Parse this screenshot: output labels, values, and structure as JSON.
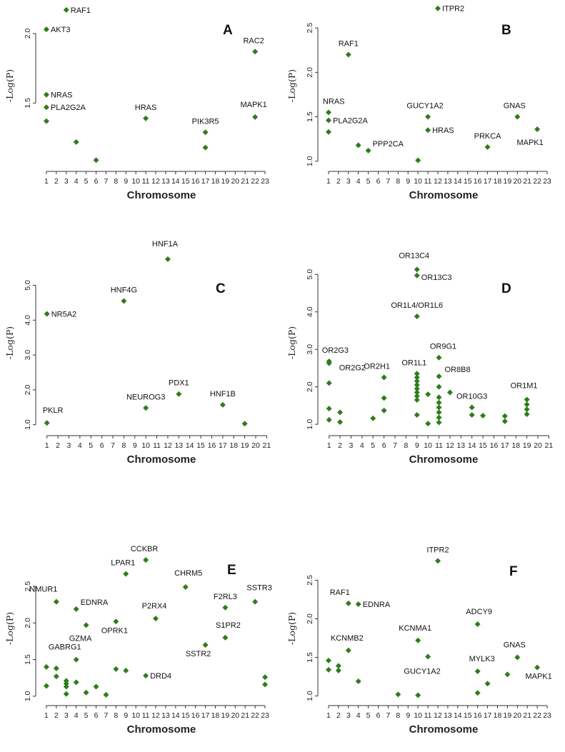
{
  "chart_data": [
    {
      "type": "scatter",
      "panel_label": "A",
      "xlabel": "Chromosome",
      "ylabel": "-Log(P)",
      "x_ticks": [
        1,
        2,
        3,
        4,
        5,
        6,
        7,
        8,
        9,
        10,
        11,
        12,
        13,
        14,
        15,
        16,
        17,
        18,
        19,
        20,
        21,
        22,
        23
      ],
      "y_ticks": [
        1.5,
        2.0
      ],
      "xlim": [
        0.5,
        23.5
      ],
      "ylim": [
        1.05,
        2.2
      ],
      "points": [
        {
          "x": 3,
          "y": 2.17,
          "label": "RAF1"
        },
        {
          "x": 1,
          "y": 2.03,
          "label": "AKT3"
        },
        {
          "x": 1,
          "y": 1.56,
          "label": "NRAS"
        },
        {
          "x": 1,
          "y": 1.47,
          "label": "PLA2G2A"
        },
        {
          "x": 1,
          "y": 1.37,
          "label": ""
        },
        {
          "x": 4,
          "y": 1.22,
          "label": ""
        },
        {
          "x": 6,
          "y": 1.09,
          "label": ""
        },
        {
          "x": 11,
          "y": 1.39,
          "label": "HRAS"
        },
        {
          "x": 17,
          "y": 1.29,
          "label": "PIK3R5"
        },
        {
          "x": 17,
          "y": 1.18,
          "label": ""
        },
        {
          "x": 22,
          "y": 1.87,
          "label": "RAC2"
        },
        {
          "x": 22,
          "y": 1.4,
          "label": "MAPK1"
        }
      ]
    },
    {
      "type": "scatter",
      "panel_label": "B",
      "xlabel": "Chromosome",
      "ylabel": "-Log(P)",
      "x_ticks": [
        1,
        2,
        3,
        4,
        5,
        6,
        7,
        8,
        9,
        10,
        11,
        12,
        13,
        14,
        15,
        16,
        17,
        18,
        19,
        20,
        21,
        22,
        23
      ],
      "y_ticks": [
        1.0,
        1.5,
        2.0,
        2.5
      ],
      "xlim": [
        0.5,
        23.5
      ],
      "ylim": [
        0.95,
        2.75
      ],
      "points": [
        {
          "x": 12,
          "y": 2.72,
          "label": "ITPR2"
        },
        {
          "x": 3,
          "y": 2.2,
          "label": "RAF1"
        },
        {
          "x": 1,
          "y": 1.55,
          "label": "NRAS"
        },
        {
          "x": 1,
          "y": 1.46,
          "label": "PLA2G2A"
        },
        {
          "x": 1,
          "y": 1.33,
          "label": ""
        },
        {
          "x": 4,
          "y": 1.18,
          "label": ""
        },
        {
          "x": 5,
          "y": 1.12,
          "label": "PPP2CA"
        },
        {
          "x": 10,
          "y": 1.01,
          "label": ""
        },
        {
          "x": 11,
          "y": 1.5,
          "label": "GUCY1A2"
        },
        {
          "x": 11,
          "y": 1.35,
          "label": "HRAS"
        },
        {
          "x": 17,
          "y": 1.16,
          "label": "PRKCA"
        },
        {
          "x": 20,
          "y": 1.5,
          "label": "GNAS"
        },
        {
          "x": 22,
          "y": 1.36,
          "label": "MAPK1"
        }
      ]
    },
    {
      "type": "scatter",
      "panel_label": "C",
      "xlabel": "Chromosome",
      "ylabel": "-Log(P)",
      "x_ticks": [
        1,
        2,
        3,
        4,
        5,
        6,
        7,
        8,
        9,
        10,
        11,
        12,
        13,
        14,
        15,
        16,
        17,
        18,
        19,
        20,
        21
      ],
      "y_ticks": [
        1.0,
        2.0,
        3.0,
        4.0,
        5.0
      ],
      "xlim": [
        0.5,
        21.3
      ],
      "ylim": [
        0.85,
        5.85
      ],
      "points": [
        {
          "x": 12,
          "y": 5.75,
          "label": "HNF1A"
        },
        {
          "x": 8,
          "y": 4.55,
          "label": "HNF4G"
        },
        {
          "x": 1,
          "y": 4.18,
          "label": "NR5A2"
        },
        {
          "x": 1,
          "y": 1.05,
          "label": "PKLR"
        },
        {
          "x": 10,
          "y": 1.48,
          "label": "NEUROG3"
        },
        {
          "x": 13,
          "y": 1.88,
          "label": "PDX1"
        },
        {
          "x": 17,
          "y": 1.57,
          "label": "HNF1B"
        },
        {
          "x": 19,
          "y": 1.03,
          "label": ""
        }
      ]
    },
    {
      "type": "scatter",
      "panel_label": "D",
      "xlabel": "Chromosome",
      "ylabel": "-Log(P)",
      "x_ticks": [
        1,
        2,
        3,
        4,
        5,
        6,
        7,
        8,
        9,
        10,
        11,
        12,
        13,
        14,
        15,
        16,
        17,
        18,
        19,
        20,
        21
      ],
      "y_ticks": [
        1.0,
        2.0,
        3.0,
        4.0,
        5.0
      ],
      "xlim": [
        0.5,
        21.3
      ],
      "ylim": [
        0.85,
        5.5
      ],
      "points": [
        {
          "x": 9,
          "y": 5.13,
          "label": "OR13C4"
        },
        {
          "x": 9,
          "y": 4.97,
          "label": "OR13C3"
        },
        {
          "x": 9,
          "y": 3.88,
          "label": "OR1L4/OR1L6"
        },
        {
          "x": 1,
          "y": 2.68,
          "label": "OR2G3"
        },
        {
          "x": 1,
          "y": 2.63,
          "label": "OR2G2"
        },
        {
          "x": 1,
          "y": 2.1,
          "label": ""
        },
        {
          "x": 1,
          "y": 1.42,
          "label": ""
        },
        {
          "x": 1,
          "y": 1.12,
          "label": ""
        },
        {
          "x": 2,
          "y": 1.32,
          "label": ""
        },
        {
          "x": 2,
          "y": 1.06,
          "label": ""
        },
        {
          "x": 5,
          "y": 1.16,
          "label": ""
        },
        {
          "x": 6,
          "y": 2.25,
          "label": "OR2H1"
        },
        {
          "x": 6,
          "y": 1.7,
          "label": ""
        },
        {
          "x": 6,
          "y": 1.37,
          "label": ""
        },
        {
          "x": 9,
          "y": 2.35,
          "label": "OR1L1"
        },
        {
          "x": 9,
          "y": 2.25,
          "label": ""
        },
        {
          "x": 9,
          "y": 2.15,
          "label": ""
        },
        {
          "x": 9,
          "y": 2.05,
          "label": ""
        },
        {
          "x": 9,
          "y": 1.95,
          "label": ""
        },
        {
          "x": 9,
          "y": 1.85,
          "label": ""
        },
        {
          "x": 9,
          "y": 1.75,
          "label": ""
        },
        {
          "x": 9,
          "y": 1.65,
          "label": ""
        },
        {
          "x": 9,
          "y": 1.25,
          "label": ""
        },
        {
          "x": 10,
          "y": 1.8,
          "label": ""
        },
        {
          "x": 10,
          "y": 1.02,
          "label": ""
        },
        {
          "x": 11,
          "y": 2.78,
          "label": "OR9G1"
        },
        {
          "x": 11,
          "y": 2.28,
          "label": "OR8B8"
        },
        {
          "x": 11,
          "y": 2.0,
          "label": ""
        },
        {
          "x": 11,
          "y": 1.72,
          "label": ""
        },
        {
          "x": 11,
          "y": 1.58,
          "label": ""
        },
        {
          "x": 11,
          "y": 1.45,
          "label": ""
        },
        {
          "x": 11,
          "y": 1.32,
          "label": ""
        },
        {
          "x": 11,
          "y": 1.18,
          "label": ""
        },
        {
          "x": 11,
          "y": 1.05,
          "label": ""
        },
        {
          "x": 12,
          "y": 1.85,
          "label": ""
        },
        {
          "x": 14,
          "y": 1.45,
          "label": "OR10G3"
        },
        {
          "x": 14,
          "y": 1.25,
          "label": ""
        },
        {
          "x": 15,
          "y": 1.23,
          "label": ""
        },
        {
          "x": 17,
          "y": 1.22,
          "label": ""
        },
        {
          "x": 17,
          "y": 1.08,
          "label": ""
        },
        {
          "x": 19,
          "y": 1.66,
          "label": "OR1M1"
        },
        {
          "x": 19,
          "y": 1.53,
          "label": ""
        },
        {
          "x": 19,
          "y": 1.4,
          "label": ""
        },
        {
          "x": 19,
          "y": 1.27,
          "label": ""
        }
      ]
    },
    {
      "type": "scatter",
      "panel_label": "E",
      "xlabel": "Chromosome",
      "ylabel": "-Log(P)",
      "x_ticks": [
        1,
        2,
        3,
        4,
        5,
        6,
        7,
        8,
        9,
        10,
        11,
        12,
        13,
        14,
        15,
        16,
        17,
        18,
        19,
        20,
        21,
        22,
        23
      ],
      "y_ticks": [
        1.0,
        1.5,
        2.0,
        2.5
      ],
      "xlim": [
        0.5,
        23.5
      ],
      "ylim": [
        0.95,
        2.9
      ],
      "points": [
        {
          "x": 11,
          "y": 2.86,
          "label": "CCKBR"
        },
        {
          "x": 9,
          "y": 2.67,
          "label": "LPAR1"
        },
        {
          "x": 15,
          "y": 2.49,
          "label": "CHRM5"
        },
        {
          "x": 22,
          "y": 2.29,
          "label": "SSTR3"
        },
        {
          "x": 2,
          "y": 2.29,
          "label": "NMUR1"
        },
        {
          "x": 4,
          "y": 2.19,
          "label": "EDNRA"
        },
        {
          "x": 19,
          "y": 2.21,
          "label": "F2RL3"
        },
        {
          "x": 12,
          "y": 2.06,
          "label": "P2RX4"
        },
        {
          "x": 8,
          "y": 2.02,
          "label": "OPRK1"
        },
        {
          "x": 5,
          "y": 1.97,
          "label": "GZMA"
        },
        {
          "x": 19,
          "y": 1.8,
          "label": "S1PR2"
        },
        {
          "x": 17,
          "y": 1.7,
          "label": "SSTR2"
        },
        {
          "x": 4,
          "y": 1.5,
          "label": "GABRG1"
        },
        {
          "x": 1,
          "y": 1.4,
          "label": ""
        },
        {
          "x": 1,
          "y": 1.14,
          "label": ""
        },
        {
          "x": 2,
          "y": 1.38,
          "label": ""
        },
        {
          "x": 2,
          "y": 1.27,
          "label": ""
        },
        {
          "x": 3,
          "y": 1.21,
          "label": ""
        },
        {
          "x": 3,
          "y": 1.17,
          "label": ""
        },
        {
          "x": 3,
          "y": 1.13,
          "label": ""
        },
        {
          "x": 3,
          "y": 1.03,
          "label": ""
        },
        {
          "x": 4,
          "y": 1.19,
          "label": ""
        },
        {
          "x": 5,
          "y": 1.05,
          "label": ""
        },
        {
          "x": 6,
          "y": 1.13,
          "label": ""
        },
        {
          "x": 7,
          "y": 1.02,
          "label": ""
        },
        {
          "x": 8,
          "y": 1.37,
          "label": ""
        },
        {
          "x": 9,
          "y": 1.35,
          "label": ""
        },
        {
          "x": 11,
          "y": 1.28,
          "label": "DRD4"
        },
        {
          "x": 23,
          "y": 1.26,
          "label": ""
        },
        {
          "x": 23,
          "y": 1.16,
          "label": ""
        }
      ]
    },
    {
      "type": "scatter",
      "panel_label": "F",
      "xlabel": "Chromosome",
      "ylabel": "-Log(P)",
      "x_ticks": [
        1,
        2,
        3,
        4,
        5,
        6,
        7,
        8,
        9,
        10,
        11,
        12,
        13,
        14,
        15,
        16,
        17,
        18,
        19,
        20,
        21,
        22,
        23
      ],
      "y_ticks": [
        1.0,
        1.5,
        2.0,
        2.5
      ],
      "xlim": [
        0.5,
        23.5
      ],
      "ylim": [
        0.95,
        2.8
      ],
      "points": [
        {
          "x": 12,
          "y": 2.75,
          "label": "ITPR2"
        },
        {
          "x": 3,
          "y": 2.2,
          "label": "RAF1"
        },
        {
          "x": 4,
          "y": 2.19,
          "label": "EDNRA"
        },
        {
          "x": 16,
          "y": 1.93,
          "label": "ADCY9"
        },
        {
          "x": 10,
          "y": 1.72,
          "label": "KCNMA1"
        },
        {
          "x": 3,
          "y": 1.59,
          "label": "KCNMB2"
        },
        {
          "x": 11,
          "y": 1.51,
          "label": "GUCY1A2"
        },
        {
          "x": 20,
          "y": 1.5,
          "label": "GNAS"
        },
        {
          "x": 16,
          "y": 1.32,
          "label": "MYLK3"
        },
        {
          "x": 22,
          "y": 1.37,
          "label": "MAPK1"
        },
        {
          "x": 1,
          "y": 1.46,
          "label": ""
        },
        {
          "x": 1,
          "y": 1.34,
          "label": ""
        },
        {
          "x": 2,
          "y": 1.39,
          "label": ""
        },
        {
          "x": 2,
          "y": 1.33,
          "label": ""
        },
        {
          "x": 4,
          "y": 1.19,
          "label": ""
        },
        {
          "x": 8,
          "y": 1.02,
          "label": ""
        },
        {
          "x": 10,
          "y": 1.01,
          "label": ""
        },
        {
          "x": 16,
          "y": 1.04,
          "label": ""
        },
        {
          "x": 17,
          "y": 1.16,
          "label": ""
        },
        {
          "x": 19,
          "y": 1.28,
          "label": ""
        }
      ]
    }
  ],
  "colors": {
    "points": "#2e7d1b",
    "axis": "#333333"
  }
}
